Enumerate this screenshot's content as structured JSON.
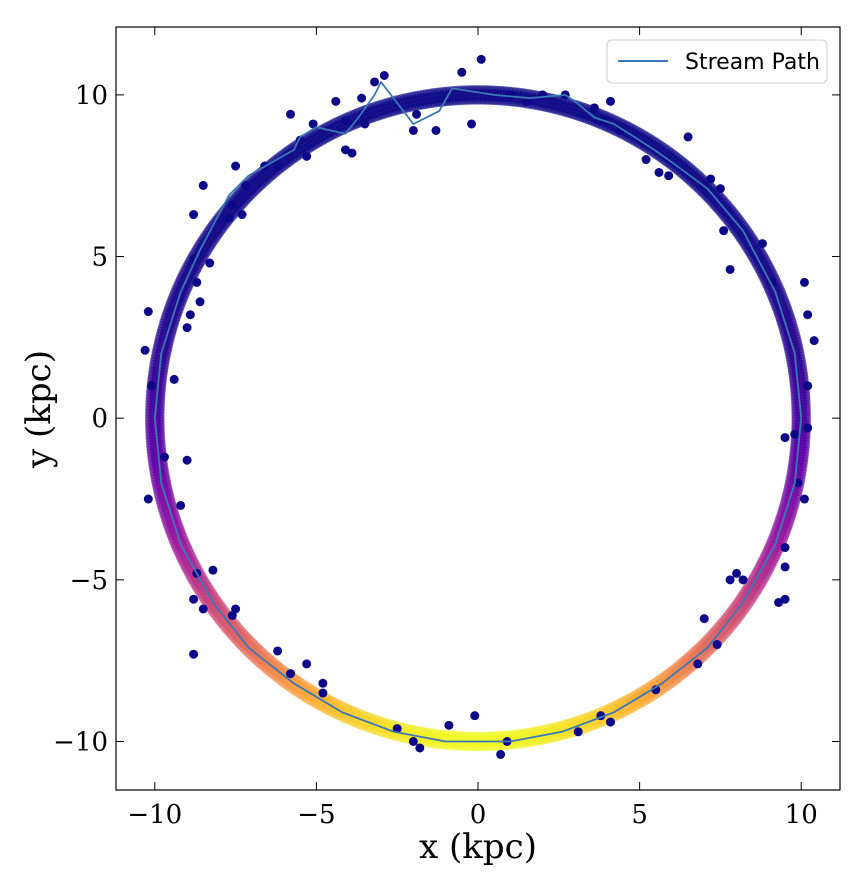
{
  "chart_data": {
    "type": "scatter",
    "xlabel": "x (kpc)",
    "ylabel": "y (kpc)",
    "xlim": [
      -11.2,
      11.2
    ],
    "ylim": [
      -11.5,
      12.1
    ],
    "xticks": [
      -10,
      -5,
      0,
      5,
      10
    ],
    "yticks": [
      -10,
      -5,
      0,
      5,
      10
    ],
    "xtick_labels": [
      "−10",
      "−5",
      "0",
      "5",
      "10"
    ],
    "ytick_labels": [
      "−10",
      "−5",
      "0",
      "5",
      "10"
    ],
    "grid": false,
    "legend": {
      "placement": "top-right",
      "entries": [
        "Stream Path"
      ]
    },
    "colors": {
      "stream_path": "#3a78b6",
      "scatter_low_density": "#0d0887",
      "colormap": [
        "#0d0887",
        "#5c01a6",
        "#9c179e",
        "#cc4778",
        "#ed7953",
        "#fdb42f",
        "#f0f921"
      ]
    },
    "ring": {
      "radius": 10.0,
      "center": [
        0,
        0
      ],
      "densest_angle_deg": -90,
      "colormap": "plasma"
    },
    "series": [
      {
        "name": "Stream Path",
        "kind": "line",
        "points": [
          [
            -10.0,
            0.0
          ],
          [
            -9.8,
            2.0
          ],
          [
            -9.2,
            3.9
          ],
          [
            -8.6,
            5.2
          ],
          [
            -7.7,
            6.9
          ],
          [
            -7.1,
            7.5
          ],
          [
            -5.7,
            8.3
          ],
          [
            -5.5,
            8.7
          ],
          [
            -5.0,
            9.0
          ],
          [
            -4.1,
            8.8
          ],
          [
            -3.7,
            9.3
          ],
          [
            -3.2,
            10.0
          ],
          [
            -3.0,
            10.4
          ],
          [
            -2.0,
            9.1
          ],
          [
            -1.2,
            9.5
          ],
          [
            -0.8,
            10.2
          ],
          [
            0.5,
            10.0
          ],
          [
            1.6,
            9.9
          ],
          [
            2.7,
            10.0
          ],
          [
            3.0,
            9.8
          ],
          [
            3.6,
            9.3
          ],
          [
            4.2,
            9.1
          ],
          [
            5.0,
            8.6
          ],
          [
            5.6,
            8.2
          ],
          [
            6.3,
            7.7
          ],
          [
            7.1,
            7.1
          ],
          [
            8.2,
            5.8
          ],
          [
            9.2,
            3.9
          ],
          [
            9.8,
            2.0
          ],
          [
            10.0,
            0.0
          ],
          [
            9.8,
            -2.0
          ],
          [
            9.2,
            -3.9
          ],
          [
            8.2,
            -5.7
          ],
          [
            7.1,
            -7.1
          ],
          [
            5.7,
            -8.2
          ],
          [
            4.2,
            -9.1
          ],
          [
            2.6,
            -9.7
          ],
          [
            1.0,
            -10.0
          ],
          [
            0.0,
            -10.0
          ],
          [
            -1.0,
            -10.0
          ],
          [
            -2.6,
            -9.7
          ],
          [
            -4.2,
            -9.1
          ],
          [
            -5.7,
            -8.2
          ],
          [
            -7.1,
            -7.1
          ],
          [
            -8.2,
            -5.7
          ],
          [
            -9.2,
            -3.9
          ],
          [
            -9.8,
            -2.0
          ],
          [
            -10.0,
            0.0
          ]
        ]
      },
      {
        "name": "",
        "kind": "scatter_outliers",
        "points": [
          [
            0.1,
            11.1
          ],
          [
            -0.5,
            10.7
          ],
          [
            -2.9,
            10.6
          ],
          [
            -3.2,
            10.4
          ],
          [
            -3.6,
            9.9
          ],
          [
            -4.4,
            9.8
          ],
          [
            -5.8,
            9.4
          ],
          [
            -1.9,
            9.4
          ],
          [
            -4.1,
            9.2
          ],
          [
            -3.5,
            9.1
          ],
          [
            -0.2,
            9.1
          ],
          [
            -5.1,
            9.1
          ],
          [
            -1.3,
            8.9
          ],
          [
            -2.0,
            8.9
          ],
          [
            -5.5,
            8.6
          ],
          [
            -4.1,
            8.3
          ],
          [
            -3.9,
            8.2
          ],
          [
            -5.3,
            8.1
          ],
          [
            -6.2,
            7.8
          ],
          [
            -7.5,
            7.8
          ],
          [
            -8.5,
            7.2
          ],
          [
            -6.6,
            7.8
          ],
          [
            -7.2,
            7.2
          ],
          [
            -7.6,
            6.6
          ],
          [
            -8.8,
            6.3
          ],
          [
            -7.7,
            6.2
          ],
          [
            -7.3,
            6.3
          ],
          [
            -8.8,
            4.9
          ],
          [
            -8.3,
            4.8
          ],
          [
            -8.7,
            4.2
          ],
          [
            -8.6,
            3.6
          ],
          [
            -8.9,
            3.2
          ],
          [
            -9.0,
            2.8
          ],
          [
            -10.2,
            3.3
          ],
          [
            -10.3,
            2.1
          ],
          [
            -9.4,
            1.2
          ],
          [
            -10.1,
            1.0
          ],
          [
            -9.7,
            -1.2
          ],
          [
            -9.0,
            -1.3
          ],
          [
            -10.2,
            -2.5
          ],
          [
            -9.2,
            -2.7
          ],
          [
            -8.7,
            -4.8
          ],
          [
            -8.2,
            -4.7
          ],
          [
            -8.8,
            -5.6
          ],
          [
            -8.5,
            -5.9
          ],
          [
            -7.5,
            -5.9
          ],
          [
            -7.6,
            -6.1
          ],
          [
            -8.8,
            -7.3
          ],
          [
            -6.2,
            -7.2
          ],
          [
            -5.3,
            -7.6
          ],
          [
            -4.8,
            -8.2
          ],
          [
            -5.8,
            -7.9
          ],
          [
            -4.8,
            -8.5
          ],
          [
            -2.5,
            -9.6
          ],
          [
            -2.0,
            -10.0
          ],
          [
            -0.9,
            -9.5
          ],
          [
            -0.1,
            -9.2
          ],
          [
            -1.8,
            -10.2
          ],
          [
            0.7,
            -10.4
          ],
          [
            2.0,
            10.0
          ],
          [
            2.7,
            10.0
          ],
          [
            1.5,
            9.8
          ],
          [
            1.0,
            10.0
          ],
          [
            3.6,
            9.6
          ],
          [
            3.9,
            9.2
          ],
          [
            4.1,
            9.8
          ],
          [
            4.4,
            8.9
          ],
          [
            5.2,
            8.0
          ],
          [
            5.6,
            7.6
          ],
          [
            5.9,
            7.5
          ],
          [
            6.5,
            8.7
          ],
          [
            7.2,
            7.4
          ],
          [
            7.0,
            7.2
          ],
          [
            7.5,
            7.1
          ],
          [
            8.8,
            5.4
          ],
          [
            9.1,
            4.2
          ],
          [
            10.1,
            4.2
          ],
          [
            7.6,
            5.8
          ],
          [
            7.8,
            4.6
          ],
          [
            10.2,
            3.2
          ],
          [
            10.4,
            2.4
          ],
          [
            10.2,
            1.0
          ],
          [
            9.5,
            -0.6
          ],
          [
            10.1,
            -2.5
          ],
          [
            9.8,
            -0.5
          ],
          [
            10.2,
            -0.3
          ],
          [
            9.9,
            -2.0
          ],
          [
            9.5,
            -4.0
          ],
          [
            9.5,
            -4.6
          ],
          [
            9.5,
            -5.6
          ],
          [
            9.3,
            -5.7
          ],
          [
            7.8,
            -5.0
          ],
          [
            8.0,
            -4.8
          ],
          [
            8.2,
            -5.0
          ],
          [
            7.0,
            -6.2
          ],
          [
            7.4,
            -7.0
          ],
          [
            6.8,
            -7.6
          ],
          [
            5.5,
            -8.4
          ],
          [
            4.1,
            -9.4
          ],
          [
            3.8,
            -9.2
          ],
          [
            0.9,
            -10.0
          ],
          [
            3.1,
            -9.7
          ]
        ]
      }
    ]
  }
}
